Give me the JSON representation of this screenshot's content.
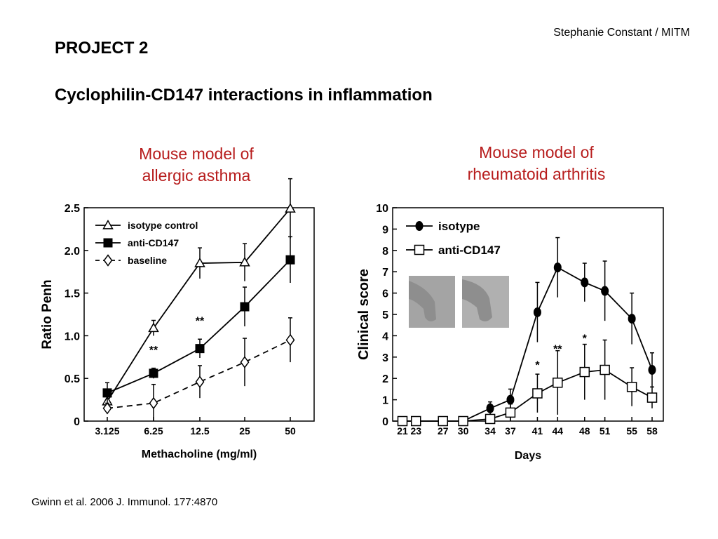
{
  "header": {
    "author": "Stephanie Constant / MITM",
    "project": "PROJECT 2",
    "subtitle": "Cyclophilin-CD147 interactions in inflammation"
  },
  "panels": {
    "asthma_title_1": "Mouse model of",
    "asthma_title_2": "allergic asthma",
    "ra_title_1": "Mouse model of",
    "ra_title_2": "rheumatoid arthritis"
  },
  "citation": "Gwinn et al. 2006 J. Immunol. 177:4870",
  "colors": {
    "panel_title": "#b71c1c",
    "photo": "#8e8e8e"
  },
  "chart_data": [
    {
      "type": "line",
      "xlabel": "Methacholine (mg/ml)",
      "ylabel": "Ratio Penh",
      "categories": [
        "3.125",
        "6.25",
        "12.5",
        "25",
        "50"
      ],
      "ylim": [
        0,
        2.5
      ],
      "yticks": [
        "0",
        "0.5",
        "1.0",
        "1.5",
        "2.0",
        "2.5"
      ],
      "ytick_values": [
        0,
        0.5,
        1.0,
        1.5,
        2.0,
        2.5
      ],
      "legend_position": "top-left",
      "grid": false,
      "series": [
        {
          "name": "isotype control",
          "marker": "open-triangle",
          "dash": false,
          "values": [
            0.23,
            1.09,
            1.85,
            1.86,
            2.49
          ],
          "errors": [
            0.08,
            0.09,
            0.18,
            0.22,
            0.35
          ]
        },
        {
          "name": "anti-CD147",
          "marker": "filled-square",
          "dash": false,
          "values": [
            0.33,
            0.56,
            0.85,
            1.34,
            1.89
          ],
          "errors": [
            0.12,
            0.06,
            0.11,
            0.23,
            0.27
          ]
        },
        {
          "name": "baseline",
          "marker": "open-diamond",
          "dash": true,
          "values": [
            0.15,
            0.21,
            0.46,
            0.69,
            0.95
          ],
          "errors": [
            0.06,
            0.22,
            0.19,
            0.28,
            0.26
          ]
        }
      ],
      "annotations": [
        {
          "text": "**",
          "category": 1,
          "y": 0.79
        },
        {
          "text": "**",
          "category": 2,
          "y": 1.13
        }
      ]
    },
    {
      "type": "line",
      "xlabel": "Days",
      "ylabel": "Clinical score",
      "categories": [
        "21",
        "23",
        "27",
        "30",
        "34",
        "37",
        "41",
        "44",
        "48",
        "51",
        "55",
        "58"
      ],
      "x": [
        21,
        23,
        27,
        30,
        34,
        37,
        41,
        44,
        48,
        51,
        55,
        58
      ],
      "ylim": [
        0,
        10
      ],
      "yticks": [
        "0",
        "1",
        "2",
        "3",
        "4",
        "5",
        "6",
        "7",
        "8",
        "9",
        "10"
      ],
      "ytick_values": [
        0,
        1,
        2,
        3,
        4,
        5,
        6,
        7,
        8,
        9,
        10
      ],
      "legend_position": "top-left",
      "grid": false,
      "series": [
        {
          "name": "isotype",
          "marker": "filled-circle",
          "values": [
            0,
            0,
            0,
            0,
            0.6,
            1.0,
            5.1,
            7.2,
            6.5,
            6.1,
            4.8,
            2.4
          ],
          "errors": [
            0,
            0,
            0,
            0,
            0.3,
            0.5,
            1.4,
            1.4,
            0.9,
            1.4,
            1.2,
            0.8
          ]
        },
        {
          "name": "anti-CD147",
          "marker": "open-square",
          "values": [
            0,
            0,
            0,
            0,
            0.1,
            0.4,
            1.3,
            1.8,
            2.3,
            2.4,
            1.6,
            1.1
          ],
          "errors": [
            0,
            0,
            0,
            0,
            0.2,
            0.4,
            0.9,
            1.5,
            1.3,
            1.4,
            0.9,
            0.5
          ]
        }
      ],
      "annotations": [
        {
          "text": "*",
          "index": 6,
          "y": 2.45
        },
        {
          "text": "**",
          "index": 7,
          "y": 3.2
        },
        {
          "text": "*",
          "index": 8,
          "y": 3.7
        }
      ]
    }
  ]
}
